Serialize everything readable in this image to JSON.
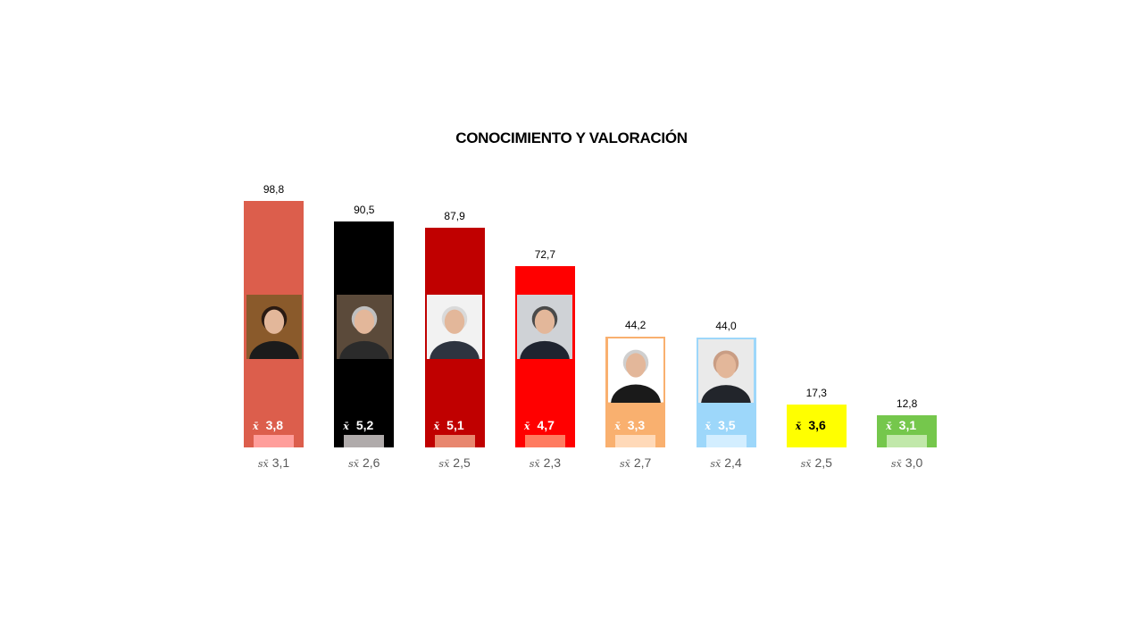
{
  "chart_data": {
    "type": "bar",
    "title": "CONOCIMIENTO Y VALORACIÓN",
    "xlabel": "",
    "ylabel": "",
    "ylim": [
      0,
      100
    ],
    "grid": false,
    "legend": "none",
    "mean_symbol": "x̄",
    "sd_symbol": "sx̄",
    "bars": [
      {
        "conocimiento": 98.8,
        "conocimiento_label": "98,8",
        "valoracion": 3.8,
        "valoracion_label": "3,8",
        "desviacion_label": "3,1",
        "color": "#DC5E4C",
        "inner_color": "#FF9E9B",
        "mean_text_color": "#ffffff",
        "photo": "portrait-woman-dark-hair"
      },
      {
        "conocimiento": 90.5,
        "conocimiento_label": "90,5",
        "valoracion": 5.2,
        "valoracion_label": "5,2",
        "desviacion_label": "2,6",
        "color": "#000000",
        "inner_color": "#B0ABAB",
        "mean_text_color": "#ffffff",
        "photo": "portrait-man-grey-hair"
      },
      {
        "conocimiento": 87.9,
        "conocimiento_label": "87,9",
        "valoracion": 5.1,
        "valoracion_label": "5,1",
        "desviacion_label": "2,5",
        "color": "#C00000",
        "inner_color": "#E8866E",
        "mean_text_color": "#ffffff",
        "photo": "portrait-older-man"
      },
      {
        "conocimiento": 72.7,
        "conocimiento_label": "72,7",
        "valoracion": 4.7,
        "valoracion_label": "4,7",
        "desviacion_label": "2,3",
        "color": "#FF0000",
        "inner_color": "#FF7B60",
        "mean_text_color": "#ffffff",
        "photo": "portrait-man-smiling"
      },
      {
        "conocimiento": 44.2,
        "conocimiento_label": "44,2",
        "valoracion": 3.3,
        "valoracion_label": "3,3",
        "desviacion_label": "2,7",
        "color": "#F9B06F",
        "inner_color": "#FFD9B8",
        "mean_text_color": "#ffffff",
        "photo": "portrait-woman-short-grey-hair"
      },
      {
        "conocimiento": 44.0,
        "conocimiento_label": "44,0",
        "valoracion": 3.5,
        "valoracion_label": "3,5",
        "desviacion_label": "2,4",
        "color": "#9DD7FA",
        "inner_color": "#D3EEFF",
        "mean_text_color": "#ffffff",
        "photo": "portrait-bald-man"
      },
      {
        "conocimiento": 17.3,
        "conocimiento_label": "17,3",
        "valoracion": 3.6,
        "valoracion_label": "3,6",
        "desviacion_label": "2,5",
        "color": "#FFFF00",
        "inner_color": "#FFFF00",
        "mean_text_color": "#000000",
        "photo": "portrait-woman-curly-hair"
      },
      {
        "conocimiento": 12.8,
        "conocimiento_label": "12,8",
        "valoracion": 3.1,
        "valoracion_label": "3,1",
        "desviacion_label": "3,0",
        "color": "#75C74C",
        "inner_color": "#C1E8AA",
        "mean_text_color": "#ffffff",
        "photo": "portrait-man-beard"
      }
    ]
  }
}
